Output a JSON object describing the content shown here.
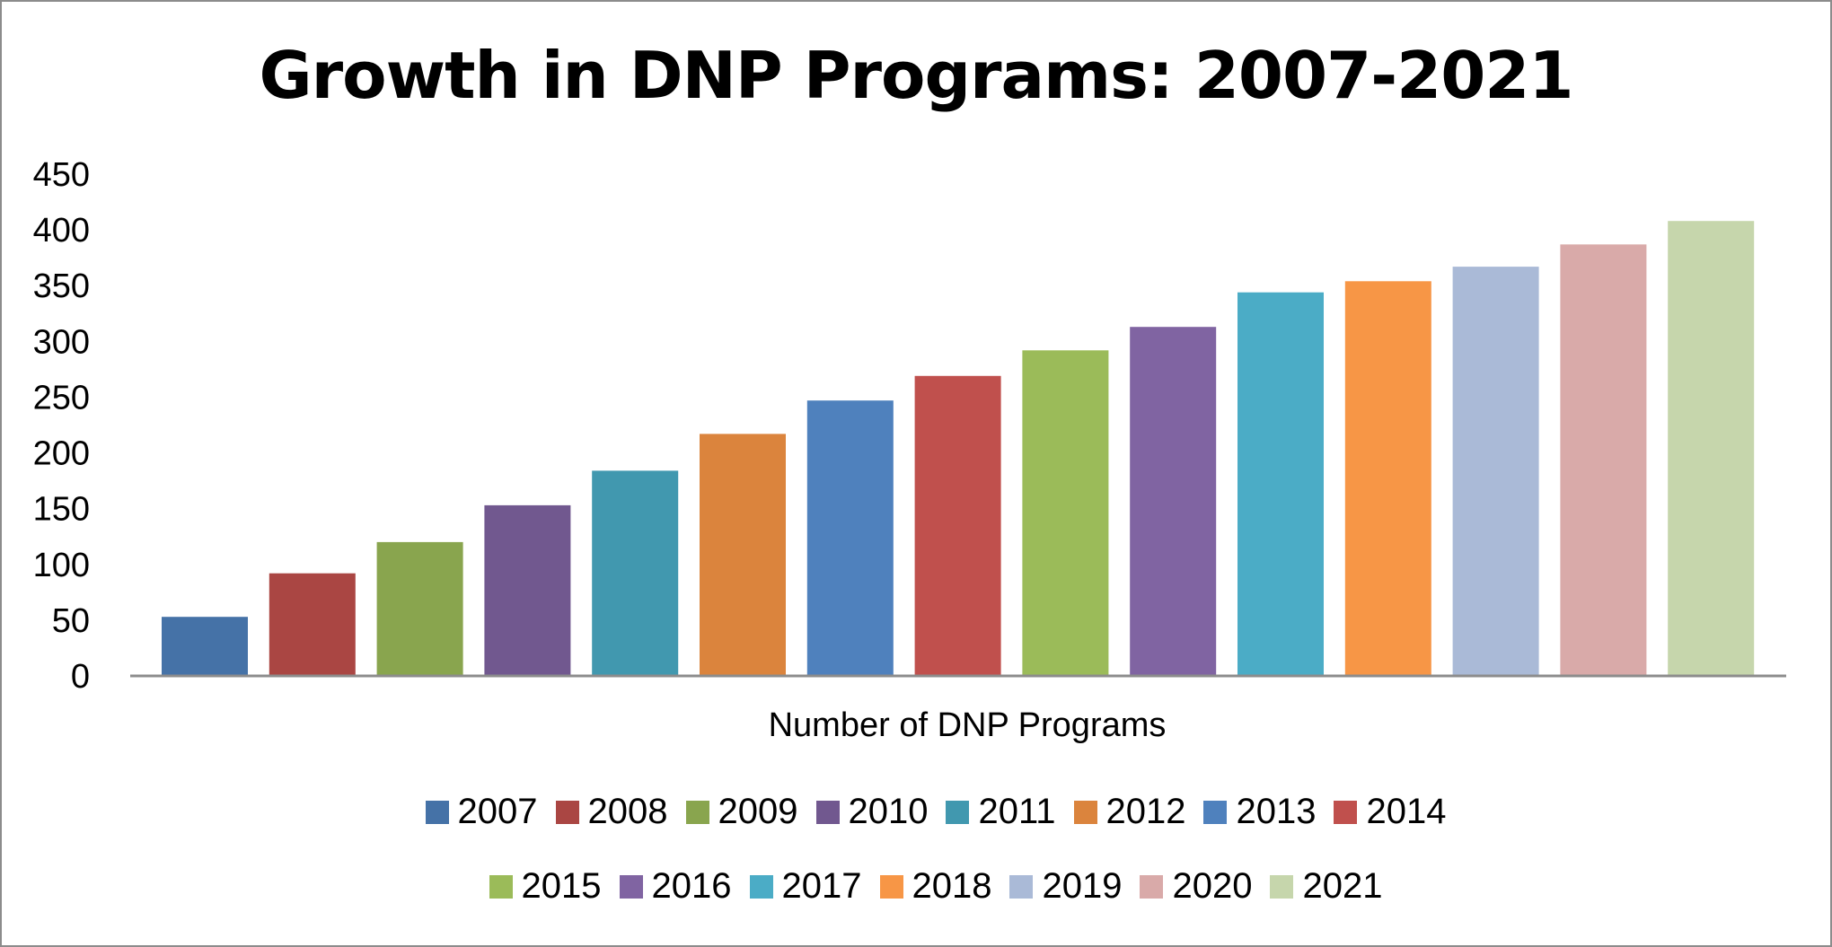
{
  "chart_data": {
    "type": "bar",
    "title": "Growth in DNP Programs: 2007-2021",
    "xlabel": "Number of DNP Programs",
    "ylabel": "",
    "ylim": [
      0,
      450
    ],
    "yticks": [
      "0",
      "50",
      "100",
      "150",
      "200",
      "250",
      "300",
      "350",
      "400",
      "450"
    ],
    "grid": false,
    "legend_position": "bottom",
    "series": [
      {
        "name": "2007",
        "value": 53,
        "color": "#4572A7"
      },
      {
        "name": "2008",
        "value": 92,
        "color": "#AA4643"
      },
      {
        "name": "2009",
        "value": 120,
        "color": "#89A54E"
      },
      {
        "name": "2010",
        "value": 153,
        "color": "#71588F"
      },
      {
        "name": "2011",
        "value": 184,
        "color": "#4198AF"
      },
      {
        "name": "2012",
        "value": 217,
        "color": "#DB843D"
      },
      {
        "name": "2013",
        "value": 247,
        "color": "#4F81BD"
      },
      {
        "name": "2014",
        "value": 269,
        "color": "#C0504D"
      },
      {
        "name": "2015",
        "value": 292,
        "color": "#9BBB59"
      },
      {
        "name": "2016",
        "value": 313,
        "color": "#8064A2"
      },
      {
        "name": "2017",
        "value": 344,
        "color": "#4BACC6"
      },
      {
        "name": "2018",
        "value": 354,
        "color": "#F79646"
      },
      {
        "name": "2019",
        "value": 367,
        "color": "#AABAD7"
      },
      {
        "name": "2020",
        "value": 387,
        "color": "#D9AAA9"
      },
      {
        "name": "2021",
        "value": 408,
        "color": "#C6D6AC"
      }
    ]
  }
}
